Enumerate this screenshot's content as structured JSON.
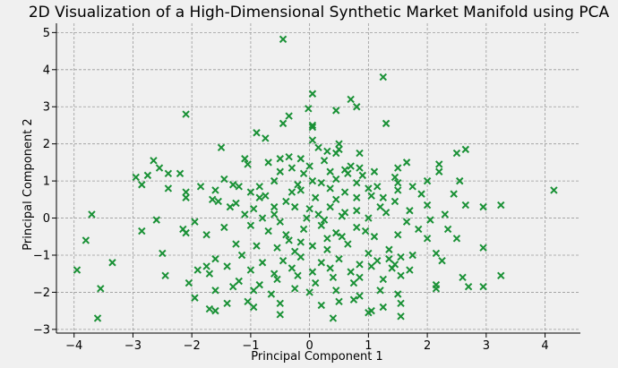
{
  "chart_data": {
    "type": "scatter",
    "title": "2D Visualization of a High-Dimensional Synthetic Market Manifold using PCA",
    "xlabel": "Principal Component 1",
    "ylabel": "Principal Component 2",
    "xlim": [
      -4.3,
      4.6
    ],
    "ylim": [
      -3.1,
      5.25
    ],
    "xticks": [
      -4,
      -3,
      -2,
      -1,
      0,
      1,
      2,
      3,
      4
    ],
    "yticks": [
      -3,
      -2,
      -1,
      0,
      1,
      2,
      3,
      4,
      5
    ],
    "tick_labels": {
      "x": [
        "−4",
        "−3",
        "−2",
        "−1",
        "0",
        "1",
        "2",
        "3",
        "4"
      ],
      "y": [
        "−3",
        "−2",
        "−1",
        "0",
        "1",
        "2",
        "3",
        "4",
        "5"
      ]
    },
    "grid": true,
    "marker": "x",
    "color": "#1a9136",
    "points": [
      [
        -0.45,
        4.82
      ],
      [
        1.25,
        3.8
      ],
      [
        0.05,
        3.35
      ],
      [
        0.7,
        3.2
      ],
      [
        0.8,
        3.0
      ],
      [
        0.45,
        2.9
      ],
      [
        -0.02,
        2.95
      ],
      [
        -2.1,
        2.8
      ],
      [
        -0.35,
        2.75
      ],
      [
        1.3,
        2.55
      ],
      [
        -0.45,
        2.55
      ],
      [
        0.05,
        2.5
      ],
      [
        0.05,
        2.45
      ],
      [
        0.5,
        2.0
      ],
      [
        -0.9,
        2.3
      ],
      [
        0.85,
        1.75
      ],
      [
        0.5,
        1.85
      ],
      [
        0.3,
        1.8
      ],
      [
        0.45,
        1.75
      ],
      [
        -1.5,
        1.9
      ],
      [
        2.65,
        1.85
      ],
      [
        2.5,
        1.75
      ],
      [
        0.05,
        2.1
      ],
      [
        -0.75,
        2.15
      ],
      [
        -0.5,
        1.6
      ],
      [
        0.25,
        1.55
      ],
      [
        0.7,
        1.4
      ],
      [
        0.85,
        1.35
      ],
      [
        -1.1,
        1.6
      ],
      [
        -0.35,
        1.65
      ],
      [
        -0.15,
        1.6
      ],
      [
        0.0,
        1.4
      ],
      [
        1.65,
        1.5
      ],
      [
        -2.65,
        1.55
      ],
      [
        -1.05,
        1.45
      ],
      [
        -2.55,
        1.35
      ],
      [
        -0.3,
        1.35
      ],
      [
        -0.1,
        1.2
      ],
      [
        1.1,
        1.25
      ],
      [
        0.65,
        1.2
      ],
      [
        -0.5,
        1.25
      ],
      [
        0.35,
        1.25
      ],
      [
        0.9,
        1.15
      ],
      [
        2.2,
        1.45
      ],
      [
        1.5,
        1.35
      ],
      [
        1.45,
        1.1
      ],
      [
        1.5,
        0.95
      ],
      [
        1.75,
        0.85
      ],
      [
        -2.95,
        1.1
      ],
      [
        -2.75,
        1.15
      ],
      [
        -2.4,
        1.2
      ],
      [
        -2.2,
        1.2
      ],
      [
        -1.45,
        1.05
      ],
      [
        -1.3,
        0.9
      ],
      [
        -1.2,
        0.85
      ],
      [
        -0.85,
        0.85
      ],
      [
        -0.6,
        1.0
      ],
      [
        0.05,
        1.0
      ],
      [
        0.2,
        0.95
      ],
      [
        0.45,
        1.05
      ],
      [
        0.8,
        0.95
      ],
      [
        1.0,
        0.8
      ],
      [
        1.15,
        0.85
      ],
      [
        2.0,
        1.0
      ],
      [
        2.2,
        1.25
      ],
      [
        2.55,
        1.0
      ],
      [
        -2.85,
        0.9
      ],
      [
        -2.4,
        0.8
      ],
      [
        -1.85,
        0.85
      ],
      [
        -1.6,
        0.75
      ],
      [
        -1.0,
        0.7
      ],
      [
        -0.75,
        0.6
      ],
      [
        -0.3,
        0.7
      ],
      [
        -0.15,
        0.75
      ],
      [
        0.35,
        0.8
      ],
      [
        0.6,
        0.7
      ],
      [
        1.25,
        0.55
      ],
      [
        1.9,
        0.65
      ],
      [
        2.45,
        0.65
      ],
      [
        3.25,
        0.35
      ],
      [
        4.15,
        0.75
      ],
      [
        -2.1,
        0.7
      ],
      [
        -2.1,
        0.55
      ],
      [
        -1.65,
        0.5
      ],
      [
        -1.55,
        0.45
      ],
      [
        -0.85,
        0.55
      ],
      [
        -0.4,
        0.45
      ],
      [
        0.1,
        0.55
      ],
      [
        0.45,
        0.5
      ],
      [
        0.8,
        0.55
      ],
      [
        1.05,
        0.6
      ],
      [
        1.45,
        0.45
      ],
      [
        2.0,
        0.35
      ],
      [
        2.65,
        0.35
      ],
      [
        2.95,
        0.3
      ],
      [
        -1.35,
        0.3
      ],
      [
        -0.95,
        0.25
      ],
      [
        -0.6,
        0.3
      ],
      [
        -0.25,
        0.3
      ],
      [
        0.0,
        0.25
      ],
      [
        0.35,
        0.3
      ],
      [
        0.8,
        0.2
      ],
      [
        1.2,
        0.3
      ],
      [
        1.3,
        0.15
      ],
      [
        -3.7,
        0.1
      ],
      [
        -2.6,
        -0.05
      ],
      [
        -2.15,
        -0.3
      ],
      [
        -1.1,
        0.1
      ],
      [
        -0.8,
        0.0
      ],
      [
        -0.5,
        -0.1
      ],
      [
        -0.05,
        0.0
      ],
      [
        0.25,
        -0.05
      ],
      [
        0.55,
        0.05
      ],
      [
        1.0,
        0.0
      ],
      [
        1.65,
        -0.1
      ],
      [
        2.05,
        -0.05
      ],
      [
        2.35,
        -0.3
      ],
      [
        -3.8,
        -0.6
      ],
      [
        -2.85,
        -0.35
      ],
      [
        -2.1,
        -0.4
      ],
      [
        -1.75,
        -0.45
      ],
      [
        -1.45,
        -0.25
      ],
      [
        -1.0,
        -0.2
      ],
      [
        -0.7,
        -0.35
      ],
      [
        -0.4,
        -0.45
      ],
      [
        -0.1,
        -0.3
      ],
      [
        0.2,
        -0.2
      ],
      [
        0.45,
        -0.4
      ],
      [
        0.8,
        -0.25
      ],
      [
        1.1,
        -0.5
      ],
      [
        1.5,
        -0.45
      ],
      [
        2.0,
        -0.55
      ],
      [
        2.5,
        -0.55
      ],
      [
        2.95,
        -0.8
      ],
      [
        -2.5,
        -0.95
      ],
      [
        -1.25,
        -0.7
      ],
      [
        -0.9,
        -0.75
      ],
      [
        -0.55,
        -0.8
      ],
      [
        -0.25,
        -0.9
      ],
      [
        0.05,
        -0.75
      ],
      [
        0.3,
        -0.85
      ],
      [
        0.65,
        -0.7
      ],
      [
        1.0,
        -0.95
      ],
      [
        1.35,
        -0.85
      ],
      [
        1.75,
        -1.0
      ],
      [
        2.15,
        -0.95
      ],
      [
        2.25,
        -1.15
      ],
      [
        -1.6,
        -1.1
      ],
      [
        -1.15,
        -1.0
      ],
      [
        -0.8,
        -1.2
      ],
      [
        -0.45,
        -1.15
      ],
      [
        -0.15,
        -1.05
      ],
      [
        0.2,
        -1.2
      ],
      [
        0.5,
        -1.1
      ],
      [
        0.85,
        -1.25
      ],
      [
        1.15,
        -1.15
      ],
      [
        1.45,
        -1.25
      ],
      [
        1.55,
        -1.05
      ],
      [
        -3.35,
        -1.2
      ],
      [
        -1.9,
        -1.4
      ],
      [
        -1.75,
        -1.3
      ],
      [
        -1.4,
        -1.3
      ],
      [
        -1.0,
        -1.4
      ],
      [
        -0.6,
        -1.5
      ],
      [
        -0.3,
        -1.35
      ],
      [
        0.05,
        -1.45
      ],
      [
        0.35,
        -1.35
      ],
      [
        0.7,
        -1.45
      ],
      [
        1.05,
        -1.3
      ],
      [
        1.4,
        -1.35
      ],
      [
        1.7,
        -1.4
      ],
      [
        -3.95,
        -1.4
      ],
      [
        -2.45,
        -1.55
      ],
      [
        -2.05,
        -1.75
      ],
      [
        -1.7,
        -1.5
      ],
      [
        -1.2,
        -1.7
      ],
      [
        -0.85,
        -1.8
      ],
      [
        -0.55,
        -1.65
      ],
      [
        -0.2,
        -1.55
      ],
      [
        0.1,
        -1.75
      ],
      [
        0.4,
        -1.6
      ],
      [
        0.75,
        -1.75
      ],
      [
        1.25,
        -1.65
      ],
      [
        1.55,
        -1.55
      ],
      [
        2.15,
        -1.8
      ],
      [
        2.6,
        -1.6
      ],
      [
        3.25,
        -1.55
      ],
      [
        -3.55,
        -1.9
      ],
      [
        -1.6,
        -1.95
      ],
      [
        -1.3,
        -1.85
      ],
      [
        -0.95,
        -1.95
      ],
      [
        -0.65,
        -2.05
      ],
      [
        -0.25,
        -1.9
      ],
      [
        0.0,
        -2.0
      ],
      [
        0.45,
        -1.95
      ],
      [
        0.85,
        -2.1
      ],
      [
        1.2,
        -1.95
      ],
      [
        1.5,
        -2.05
      ],
      [
        2.15,
        -1.9
      ],
      [
        2.7,
        -1.85
      ],
      [
        2.95,
        -1.85
      ],
      [
        -1.95,
        -2.15
      ],
      [
        -1.4,
        -2.3
      ],
      [
        -1.05,
        -2.25
      ],
      [
        -0.5,
        -2.3
      ],
      [
        0.2,
        -2.35
      ],
      [
        0.5,
        -2.25
      ],
      [
        0.75,
        -2.2
      ],
      [
        1.05,
        -2.5
      ],
      [
        1.25,
        -2.4
      ],
      [
        1.55,
        -2.3
      ],
      [
        -1.7,
        -2.45
      ],
      [
        -1.6,
        -2.5
      ],
      [
        -0.95,
        -2.4
      ],
      [
        -0.5,
        -2.6
      ],
      [
        0.4,
        -2.7
      ],
      [
        1.0,
        -2.55
      ],
      [
        1.55,
        -2.65
      ],
      [
        -3.6,
        -2.7
      ],
      [
        0.85,
        -1.6
      ],
      [
        0.3,
        -0.55
      ],
      [
        -0.7,
        1.5
      ],
      [
        0.15,
        1.9
      ],
      [
        -0.2,
        0.9
      ],
      [
        0.6,
        1.3
      ],
      [
        1.7,
        0.2
      ],
      [
        -0.35,
        -0.6
      ],
      [
        0.55,
        -0.5
      ],
      [
        1.35,
        -1.1
      ],
      [
        0.6,
        0.15
      ],
      [
        -0.15,
        -0.65
      ],
      [
        0.95,
        -0.35
      ],
      [
        -0.6,
        0.1
      ],
      [
        0.15,
        0.1
      ],
      [
        1.5,
        0.75
      ],
      [
        -1.95,
        -0.1
      ],
      [
        -1.25,
        0.4
      ],
      [
        2.3,
        0.1
      ],
      [
        1.85,
        -0.3
      ]
    ]
  }
}
